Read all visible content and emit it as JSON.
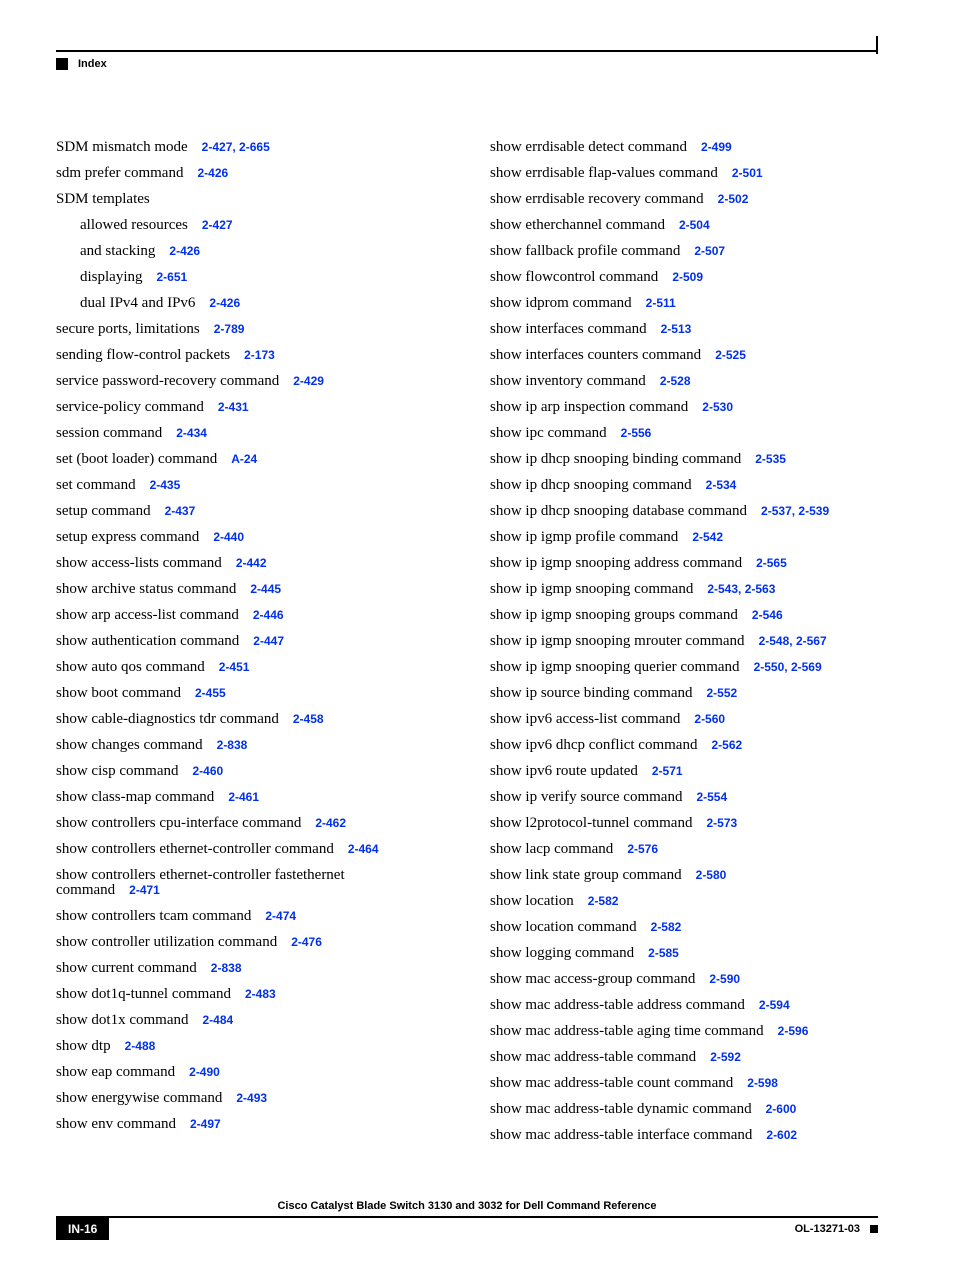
{
  "header": {
    "label": "Index"
  },
  "colors": {
    "link": "#0030ee",
    "text": "#000000",
    "bg": "#ffffff"
  },
  "typography": {
    "body_family": "Times New Roman",
    "body_size_pt": 11,
    "ref_family": "Arial",
    "ref_size_pt": 9,
    "ref_weight": "bold"
  },
  "left": [
    {
      "text": "SDM mismatch mode",
      "refs": [
        "2-427",
        "2-665"
      ]
    },
    {
      "text": "sdm prefer command",
      "refs": [
        "2-426"
      ]
    },
    {
      "text": "SDM templates",
      "refs": []
    },
    {
      "text": "allowed resources",
      "refs": [
        "2-427"
      ],
      "indent": true
    },
    {
      "text": "and stacking",
      "refs": [
        "2-426"
      ],
      "indent": true
    },
    {
      "text": "displaying",
      "refs": [
        "2-651"
      ],
      "indent": true
    },
    {
      "text": "dual IPv4 and IPv6",
      "refs": [
        "2-426"
      ],
      "indent": true
    },
    {
      "text": "secure ports, limitations",
      "refs": [
        "2-789"
      ]
    },
    {
      "text": "sending flow-control packets",
      "refs": [
        "2-173"
      ]
    },
    {
      "text": "service password-recovery command",
      "refs": [
        "2-429"
      ]
    },
    {
      "text": "service-policy command",
      "refs": [
        "2-431"
      ]
    },
    {
      "text": "session command",
      "refs": [
        "2-434"
      ]
    },
    {
      "text": "set (boot loader) command",
      "refs": [
        "A-24"
      ]
    },
    {
      "text": "set command",
      "refs": [
        "2-435"
      ]
    },
    {
      "text": "setup command",
      "refs": [
        "2-437"
      ]
    },
    {
      "text": "setup express command",
      "refs": [
        "2-440"
      ]
    },
    {
      "text": "show access-lists command",
      "refs": [
        "2-442"
      ]
    },
    {
      "text": "show archive status command",
      "refs": [
        "2-445"
      ]
    },
    {
      "text": "show arp access-list command",
      "refs": [
        "2-446"
      ]
    },
    {
      "text": "show authentication command",
      "refs": [
        "2-447"
      ]
    },
    {
      "text": "show auto qos command",
      "refs": [
        "2-451"
      ]
    },
    {
      "text": "show boot command",
      "refs": [
        "2-455"
      ]
    },
    {
      "text": "show cable-diagnostics tdr command",
      "refs": [
        "2-458"
      ]
    },
    {
      "text": "show changes command",
      "refs": [
        "2-838"
      ]
    },
    {
      "text": "show cisp command",
      "refs": [
        "2-460"
      ]
    },
    {
      "text": "show class-map command",
      "refs": [
        "2-461"
      ]
    },
    {
      "text": "show controllers cpu-interface command",
      "refs": [
        "2-462"
      ]
    },
    {
      "text": "show controllers ethernet-controller command",
      "refs": [
        "2-464"
      ]
    },
    {
      "text": "show controllers ethernet-controller fastethernet command",
      "refs": [
        "2-471"
      ]
    },
    {
      "text": "show controllers tcam command",
      "refs": [
        "2-474"
      ]
    },
    {
      "text": "show controller utilization command",
      "refs": [
        "2-476"
      ]
    },
    {
      "text": "show current command",
      "refs": [
        "2-838"
      ]
    },
    {
      "text": "show dot1q-tunnel command",
      "refs": [
        "2-483"
      ]
    },
    {
      "text": "show dot1x command",
      "refs": [
        "2-484"
      ]
    },
    {
      "text": "show dtp",
      "refs": [
        "2-488"
      ]
    },
    {
      "text": "show eap command",
      "refs": [
        "2-490"
      ]
    },
    {
      "text": "show energywise command",
      "refs": [
        "2-493"
      ]
    },
    {
      "text": "show env command",
      "refs": [
        "2-497"
      ]
    }
  ],
  "right": [
    {
      "text": "show errdisable detect command",
      "refs": [
        "2-499"
      ]
    },
    {
      "text": "show errdisable flap-values command",
      "refs": [
        "2-501"
      ]
    },
    {
      "text": "show errdisable recovery command",
      "refs": [
        "2-502"
      ]
    },
    {
      "text": "show etherchannel command",
      "refs": [
        "2-504"
      ]
    },
    {
      "text": "show fallback profile command",
      "refs": [
        "2-507"
      ]
    },
    {
      "text": "show flowcontrol command",
      "refs": [
        "2-509"
      ]
    },
    {
      "text": "show idprom command",
      "refs": [
        "2-511"
      ]
    },
    {
      "text": "show interfaces command",
      "refs": [
        "2-513"
      ]
    },
    {
      "text": "show interfaces counters command",
      "refs": [
        "2-525"
      ]
    },
    {
      "text": "show inventory command",
      "refs": [
        "2-528"
      ]
    },
    {
      "text": "show ip arp inspection command",
      "refs": [
        "2-530"
      ]
    },
    {
      "text": "show ipc command",
      "refs": [
        "2-556"
      ]
    },
    {
      "text": "show ip dhcp snooping binding command",
      "refs": [
        "2-535"
      ]
    },
    {
      "text": "show ip dhcp snooping command",
      "refs": [
        "2-534"
      ]
    },
    {
      "text": "show ip dhcp snooping database command",
      "refs": [
        "2-537",
        "2-539"
      ]
    },
    {
      "text": "show ip igmp profile command",
      "refs": [
        "2-542"
      ]
    },
    {
      "text": "show ip igmp snooping address command",
      "refs": [
        "2-565"
      ]
    },
    {
      "text": "show ip igmp snooping command",
      "refs": [
        "2-543",
        "2-563"
      ]
    },
    {
      "text": "show ip igmp snooping groups command",
      "refs": [
        "2-546"
      ]
    },
    {
      "text": "show ip igmp snooping mrouter command",
      "refs": [
        "2-548",
        "2-567"
      ]
    },
    {
      "text": "show ip igmp snooping querier command",
      "refs": [
        "2-550",
        "2-569"
      ]
    },
    {
      "text": "show ip source binding command",
      "refs": [
        "2-552"
      ]
    },
    {
      "text": "show ipv6 access-list command",
      "refs": [
        "2-560"
      ]
    },
    {
      "text": "show ipv6 dhcp conflict command",
      "refs": [
        "2-562"
      ]
    },
    {
      "text": "show ipv6 route updated",
      "refs": [
        "2-571"
      ]
    },
    {
      "text": "show ip verify source command",
      "refs": [
        "2-554"
      ]
    },
    {
      "text": "show l2protocol-tunnel command",
      "refs": [
        "2-573"
      ]
    },
    {
      "text": "show lacp command",
      "refs": [
        "2-576"
      ]
    },
    {
      "text": "show link state group command",
      "refs": [
        "2-580"
      ]
    },
    {
      "text": "show location",
      "refs": [
        "2-582"
      ]
    },
    {
      "text": "show location command",
      "refs": [
        "2-582"
      ]
    },
    {
      "text": "show logging command",
      "refs": [
        "2-585"
      ]
    },
    {
      "text": "show mac access-group command",
      "refs": [
        "2-590"
      ]
    },
    {
      "text": "show mac address-table address command",
      "refs": [
        "2-594"
      ]
    },
    {
      "text": "show mac address-table aging time command",
      "refs": [
        "2-596"
      ]
    },
    {
      "text": "show mac address-table command",
      "refs": [
        "2-592"
      ]
    },
    {
      "text": "show mac address-table count command",
      "refs": [
        "2-598"
      ]
    },
    {
      "text": "show mac address-table dynamic command",
      "refs": [
        "2-600"
      ]
    },
    {
      "text": "show mac address-table interface command",
      "refs": [
        "2-602"
      ]
    }
  ],
  "footer": {
    "title": "Cisco Catalyst Blade Switch 3130 and 3032 for Dell Command Reference",
    "page": "IN-16",
    "doc": "OL-13271-03"
  }
}
